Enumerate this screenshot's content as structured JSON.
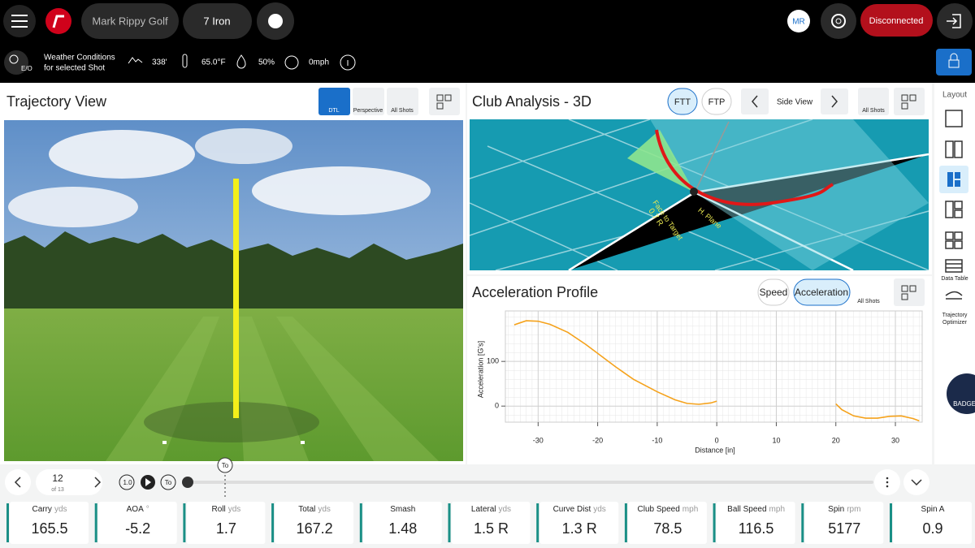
{
  "top_bar": {
    "account": "Mark Rippy Golf",
    "club": "7 Iron",
    "user_initials": "MR",
    "status": "Disconnected"
  },
  "weather": {
    "badge": "E/O",
    "label_line1": "Weather Conditions",
    "label_line2": "for selected Shot",
    "elevation": "338'",
    "temperature": "65.0°F",
    "humidity": "50%",
    "wind": "0mph"
  },
  "trajectory_view": {
    "title": "Trajectory View",
    "buttons": [
      "DTL",
      "Perspective",
      "All Shots"
    ]
  },
  "club_analysis": {
    "title": "Club Analysis - 3D",
    "buttons": [
      "FTT",
      "FTP"
    ],
    "view": "Side View",
    "all_shots": "All Shots",
    "labels": [
      "Face to Target",
      "0.7 R",
      "H. Plane"
    ]
  },
  "acceleration_profile": {
    "title": "Acceleration Profile",
    "buttons": [
      "Speed",
      "Acceleration"
    ],
    "all_shots": "All Shots",
    "chart": {
      "type": "line",
      "x_label": "Distance [in]",
      "y_label": "Acceleration [G's]",
      "xlim": [
        -35.5,
        34.5
      ],
      "ylim": [
        -36,
        213
      ],
      "xticks": [
        -30,
        -20,
        -10,
        0,
        10,
        20,
        30
      ],
      "yticks": [
        0,
        100
      ],
      "series": [
        {
          "color": "#f5a21b",
          "x": [
            -34,
            -32,
            -30,
            -28,
            -25,
            -22,
            -20,
            -17,
            -14,
            -10,
            -7,
            -5,
            -3,
            -1,
            0,
            10,
            20,
            21,
            23,
            25,
            27,
            29,
            31,
            33,
            34
          ],
          "values": [
            182,
            191,
            190,
            183,
            165,
            138,
            118,
            88,
            60,
            32,
            14,
            6,
            4,
            7,
            11,
            null,
            5,
            -8,
            -22,
            -27,
            -27,
            -23,
            -22,
            -28,
            -33
          ]
        }
      ]
    }
  },
  "sidebar": {
    "title": "Layout",
    "items": [
      "Data Table",
      "Trajectory Optimizer"
    ],
    "badge": "BADGER"
  },
  "shot_nav": {
    "shot": 12,
    "of": "of 13",
    "speed": "1.0",
    "marker": "To"
  },
  "stats": [
    {
      "label": "Carry",
      "unit": "yds",
      "value": 165.5
    },
    {
      "label": "AOA",
      "unit": "°",
      "value": -5.2
    },
    {
      "label": "Roll",
      "unit": "yds",
      "value": 1.7
    },
    {
      "label": "Total",
      "unit": "yds",
      "value": 167.2
    },
    {
      "label": "Smash",
      "unit": "",
      "value": 1.48
    },
    {
      "label": "Lateral",
      "unit": "yds",
      "value": "1.5 R"
    },
    {
      "label": "Curve Dist",
      "unit": "yds",
      "value": "1.3 R"
    },
    {
      "label": "Club Speed",
      "unit": "mph",
      "value": 78.5
    },
    {
      "label": "Ball Speed",
      "unit": "mph",
      "value": 116.5
    },
    {
      "label": "Spin",
      "unit": "rpm",
      "value": 5177
    },
    {
      "label": "Spin A",
      "unit": "",
      "value": 0.9
    }
  ]
}
